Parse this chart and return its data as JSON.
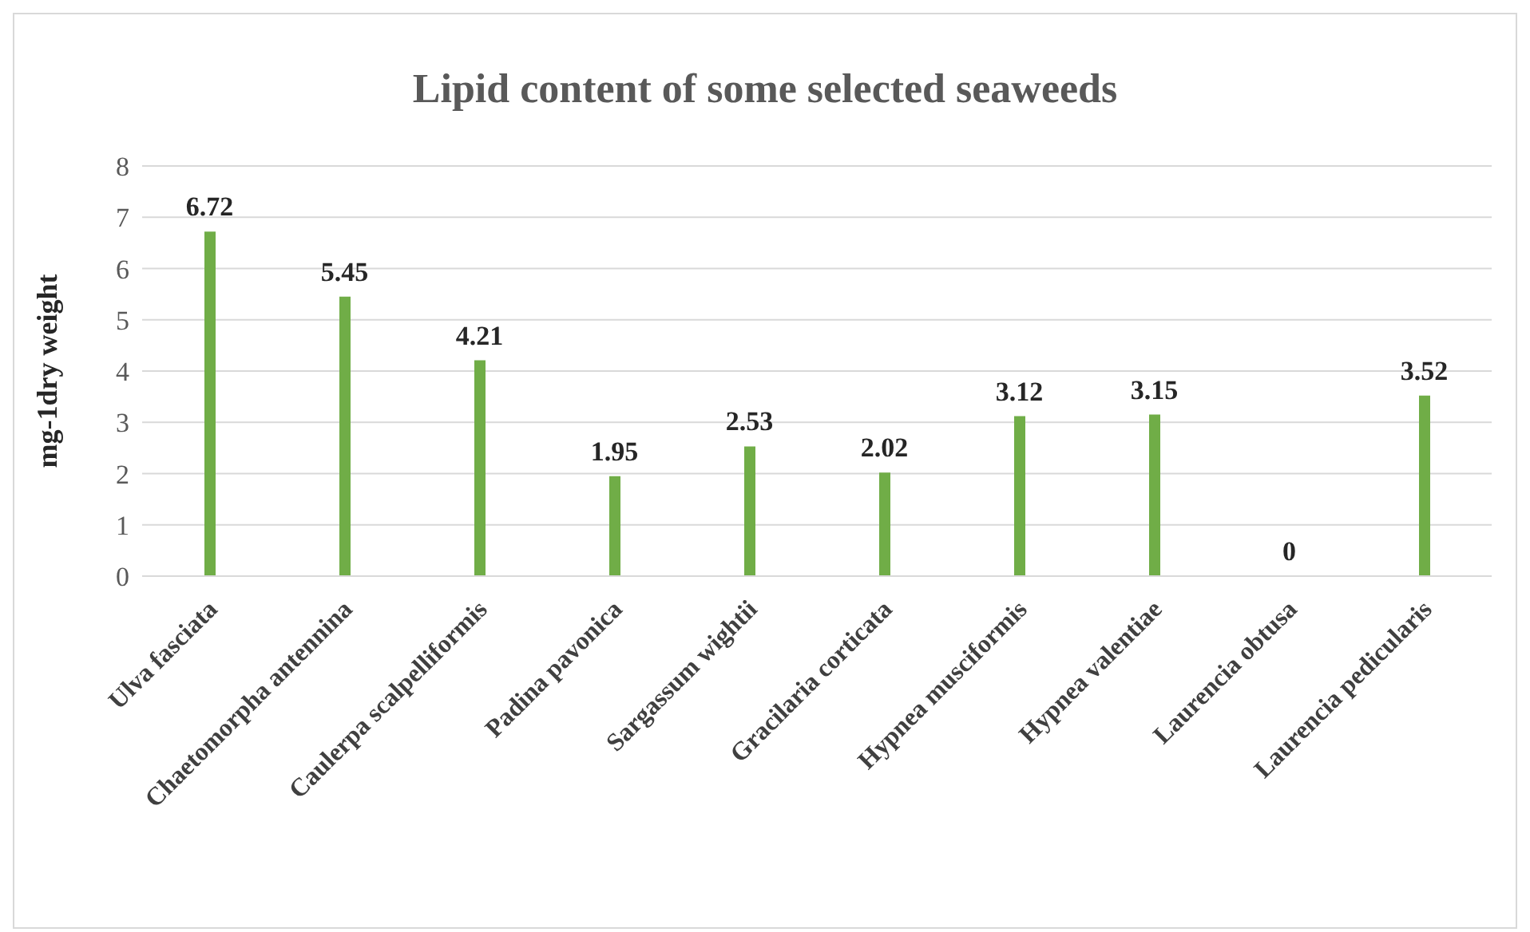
{
  "chart_data": {
    "type": "bar",
    "title": "Lipid content of some selected seaweeds",
    "ylabel": "mg-1dry weight",
    "categories": [
      "Ulva fasciata",
      "Chaetomorpha antennina",
      "Caulerpa scalpelliformis",
      "Padina pavonica",
      "Sargassum wightii",
      "Gracilaria corticata",
      "Hypnea musciformis",
      "Hypnea valentiae",
      "Laurencia obtusa",
      "Laurencia pedicularis"
    ],
    "values": [
      6.72,
      5.45,
      4.21,
      1.95,
      2.53,
      2.02,
      3.12,
      3.15,
      0,
      3.52
    ],
    "color": "#70ad47",
    "ylim": [
      0,
      8
    ],
    "yticks": [
      0,
      1,
      2,
      3,
      4,
      5,
      6,
      7,
      8
    ],
    "grid": "y",
    "data_labels": true
  }
}
